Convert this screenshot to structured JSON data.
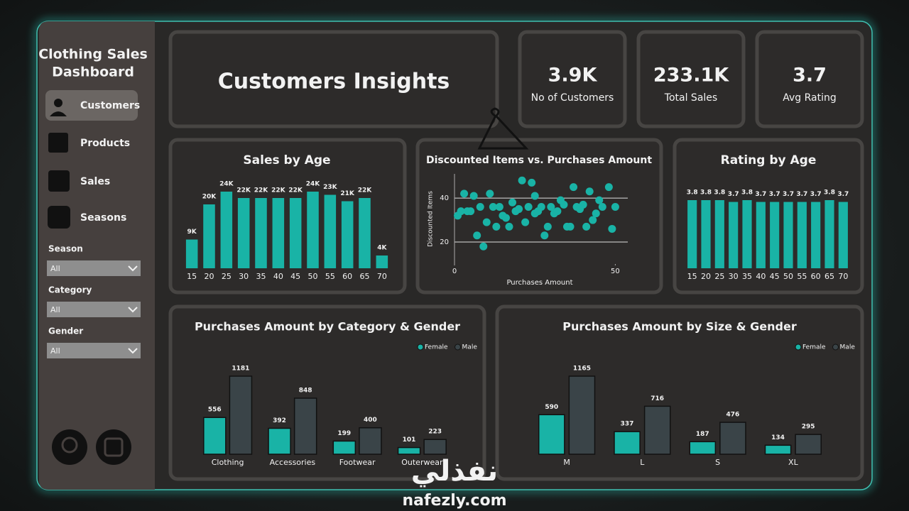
{
  "sidebar": {
    "title_lines": [
      "Clothing Sales",
      "Dashboard"
    ],
    "nav": [
      "Customers",
      "Products",
      "Sales",
      "Seasons"
    ],
    "filters": [
      {
        "label": "Season",
        "value": "All"
      },
      {
        "label": "Category",
        "value": "All"
      },
      {
        "label": "Gender",
        "value": "All"
      }
    ]
  },
  "header": {
    "title": "Customers Insights"
  },
  "kpis": [
    {
      "value": "3.9K",
      "label": "No of Customers"
    },
    {
      "value": "233.1K",
      "label": "Total Sales"
    },
    {
      "value": "3.7",
      "label": "Avg Rating"
    }
  ],
  "chart_data": [
    {
      "type": "bar",
      "title": "Sales by Age",
      "color": "#19b3a6",
      "categories": [
        "15",
        "20",
        "25",
        "30",
        "35",
        "40",
        "45",
        "50",
        "55",
        "60",
        "65",
        "70"
      ],
      "values": [
        9000,
        20000,
        24000,
        22000,
        22000,
        22000,
        22000,
        24000,
        23000,
        21000,
        22000,
        4000
      ],
      "value_labels": [
        "9K",
        "20K",
        "24K",
        "22K",
        "22K",
        "22K",
        "22K",
        "24K",
        "23K",
        "21K",
        "22K",
        "4K"
      ]
    },
    {
      "type": "scatter",
      "title": "Discounted Items vs. Purchases Amount",
      "color": "#19b3a6",
      "xlabel": "Purchases Amount",
      "ylabel": "Discounted Items",
      "x": [
        1,
        2,
        3,
        4,
        5,
        6,
        7,
        9,
        8,
        10,
        11,
        12,
        13,
        14,
        15,
        16,
        17,
        18,
        19,
        20,
        21,
        22,
        23,
        24,
        25,
        25,
        26,
        27,
        28,
        29,
        30,
        31,
        32,
        33,
        34,
        35,
        36,
        37,
        38,
        39,
        40,
        41,
        42,
        43,
        44,
        45,
        46,
        48,
        49,
        50
      ],
      "y": [
        32,
        34,
        42,
        34,
        34,
        41,
        23,
        18,
        36,
        29,
        42,
        36,
        27,
        36,
        32,
        31,
        27,
        38,
        34,
        35,
        48,
        29,
        36,
        47,
        41,
        33,
        34,
        36,
        23,
        27,
        36,
        33,
        34,
        39,
        37,
        27,
        27,
        45,
        36,
        35,
        37,
        27,
        43,
        30,
        33,
        39,
        36,
        45,
        26,
        36
      ],
      "xlim": [
        0,
        53
      ],
      "ylim": [
        10,
        51
      ],
      "xticks": [
        0,
        50
      ],
      "yticks": [
        20,
        40
      ],
      "grid": true
    },
    {
      "type": "bar",
      "title": "Rating by Age",
      "color": "#19b3a6",
      "categories": [
        "15",
        "20",
        "25",
        "30",
        "35",
        "40",
        "45",
        "50",
        "55",
        "60",
        "65",
        "70"
      ],
      "values": [
        3.8,
        3.8,
        3.8,
        3.7,
        3.8,
        3.7,
        3.7,
        3.7,
        3.7,
        3.7,
        3.8,
        3.7
      ]
    },
    {
      "type": "bar",
      "title": "Purchases Amount by Category & Gender",
      "legend": "top-right",
      "categories": [
        "Clothing",
        "Accessories",
        "Footwear",
        "Outerwear"
      ],
      "series": [
        {
          "name": "Female",
          "color": "#19b3a6",
          "values": [
            556,
            392,
            199,
            101
          ]
        },
        {
          "name": "Male",
          "color": "#3a4448",
          "values": [
            1181,
            848,
            400,
            223
          ]
        }
      ]
    },
    {
      "type": "bar",
      "title": "Purchases Amount by Size & Gender",
      "legend": "top-right",
      "categories": [
        "M",
        "L",
        "S",
        "XL"
      ],
      "series": [
        {
          "name": "Female",
          "color": "#19b3a6",
          "values": [
            590,
            337,
            187,
            134
          ]
        },
        {
          "name": "Male",
          "color": "#3a4448",
          "values": [
            1165,
            716,
            476,
            295
          ]
        }
      ]
    }
  ],
  "watermark": {
    "arabic": "نفذلي",
    "latin": "nafezly.com"
  }
}
